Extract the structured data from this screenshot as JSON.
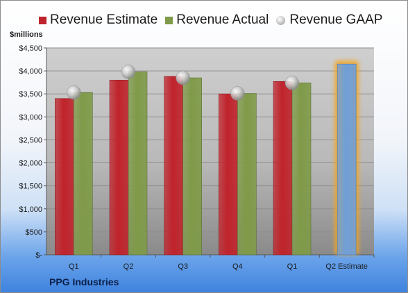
{
  "legend": {
    "estimate": "Revenue Estimate",
    "actual": "Revenue Actual",
    "gaap": "Revenue GAAP"
  },
  "unit_label": "$millions",
  "company": "PPG Industries",
  "colors": {
    "estimate": "#c0232b",
    "actual": "#7f9a48",
    "gaap": "#b7b7b7",
    "future_estimate": "#6f9fd8",
    "future_glow": "#f5a623"
  },
  "chart_data": {
    "type": "bar",
    "categories": [
      "Q1",
      "Q2",
      "Q3",
      "Q4",
      "Q1",
      "Q2 Estimate"
    ],
    "series": [
      {
        "name": "Revenue Estimate",
        "values": [
          3400,
          3800,
          3880,
          3500,
          3770,
          4150
        ]
      },
      {
        "name": "Revenue Actual",
        "values": [
          3530,
          3980,
          3850,
          3510,
          3740,
          null
        ]
      },
      {
        "name": "Revenue GAAP",
        "values": [
          3530,
          3980,
          3850,
          3510,
          3740,
          null
        ]
      }
    ],
    "ylabel": "$millions",
    "ylim": [
      0,
      4500
    ],
    "yticks": [
      0,
      500,
      1000,
      1500,
      2000,
      2500,
      3000,
      3500,
      4000,
      4500
    ],
    "ytick_labels": [
      "$-",
      "$500",
      "$1,000",
      "$1,500",
      "$2,000",
      "$2,500",
      "$3,000",
      "$3,500",
      "$4,000",
      "$4,500"
    ],
    "grid": true,
    "legend_position": "top"
  }
}
